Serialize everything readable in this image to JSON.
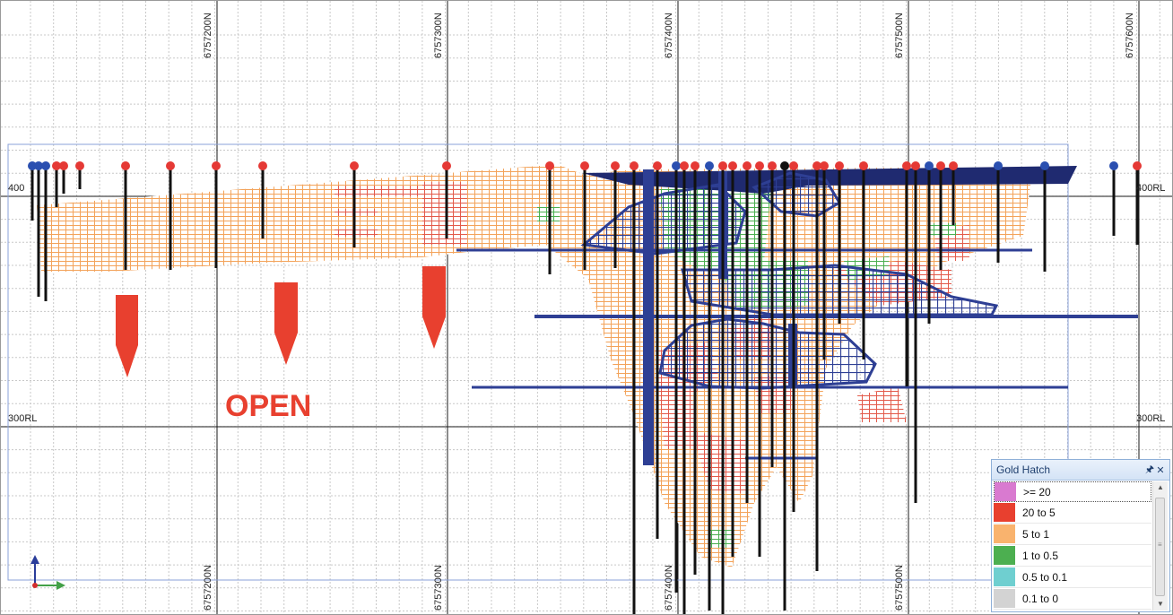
{
  "northing_labels": [
    "6757200N",
    "6757300N",
    "6757400N",
    "6757500N",
    "6757600N"
  ],
  "rl_labels": {
    "left_top": "400",
    "right_top": "400RL",
    "left_mid": "300RL",
    "right_mid": "300RL"
  },
  "annotation": {
    "open_text": "OPEN"
  },
  "colors": {
    "grade_ge20": "#d97ad0",
    "grade_20_5": "#e8402f",
    "grade_5_1": "#f9b36e",
    "grade_1_05": "#4caf50",
    "grade_05_01": "#6fcfd0",
    "grade_01_0": "#d3d3d3",
    "wireframe": "#2e3f94",
    "drillhole": "#111111",
    "collar_red": "#e53935",
    "collar_blue": "#2a4fb0",
    "open_arrow": "#e8402f"
  },
  "legend": {
    "title": "Gold Hatch",
    "pin_icon": "pin-icon",
    "close_icon": "close-icon",
    "items": [
      {
        "label": ">= 20",
        "color": "#d97ad0"
      },
      {
        "label": "20 to 5",
        "color": "#e8402f"
      },
      {
        "label": "5 to 1",
        "color": "#f9b36e"
      },
      {
        "label": "1 to 0.5",
        "color": "#4caf50"
      },
      {
        "label": "0.5 to 0.1",
        "color": "#6fcfd0"
      },
      {
        "label": "0.1 to 0",
        "color": "#d3d3d3"
      }
    ]
  },
  "axes_icon": "xyz-axis-triad-icon"
}
